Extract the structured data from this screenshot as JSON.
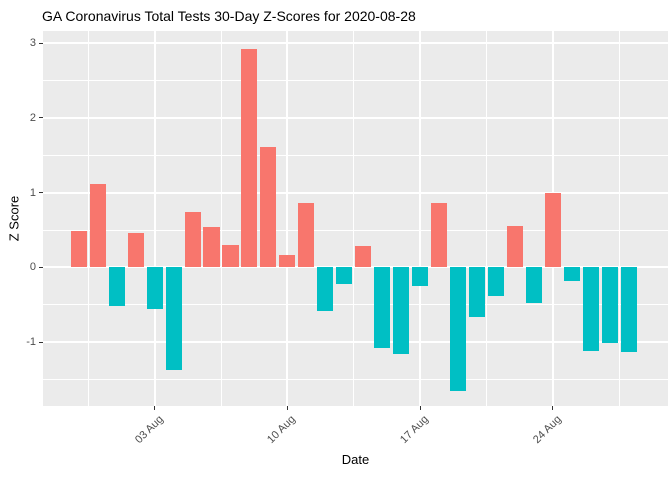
{
  "title": "GA Coronavirus Total Tests 30-Day Z-Scores for 2020-08-28",
  "colors": {
    "positive_bar": "#F8766D",
    "negative_bar": "#00BFC4",
    "panel_background": "#EBEBEB",
    "gridline": "#FFFFFF",
    "tick_label": "#4D4D4D",
    "axis_text": "#000000"
  },
  "chart_data": {
    "type": "bar",
    "title": "GA Coronavirus Total Tests 30-Day Z-Scores for 2020-08-28",
    "xlabel": "Date",
    "ylabel": "Z Score",
    "legend": "none",
    "grid": "white major and minor gridlines on gray panel",
    "color_rule": "positive bars salmon #F8766D, negative bars teal #00BFC4",
    "x": [
      "2020-07-30",
      "2020-07-31",
      "2020-08-01",
      "2020-08-02",
      "2020-08-03",
      "2020-08-04",
      "2020-08-05",
      "2020-08-06",
      "2020-08-07",
      "2020-08-08",
      "2020-08-09",
      "2020-08-10",
      "2020-08-11",
      "2020-08-12",
      "2020-08-13",
      "2020-08-14",
      "2020-08-15",
      "2020-08-16",
      "2020-08-17",
      "2020-08-18",
      "2020-08-19",
      "2020-08-20",
      "2020-08-21",
      "2020-08-22",
      "2020-08-23",
      "2020-08-24",
      "2020-08-25",
      "2020-08-26",
      "2020-08-27",
      "2020-08-28"
    ],
    "values": [
      0.49,
      1.12,
      -0.52,
      0.46,
      -0.56,
      -1.37,
      0.74,
      0.54,
      0.3,
      2.92,
      1.61,
      0.17,
      0.86,
      -0.59,
      -0.23,
      0.29,
      -1.08,
      -1.16,
      -0.25,
      0.86,
      -1.65,
      -0.66,
      -0.38,
      0.55,
      -0.48,
      1.0,
      -0.19,
      -1.12,
      -1.01,
      -1.14
    ],
    "ylim": [
      -1.88,
      3.16
    ],
    "yticks": [
      3,
      2,
      1,
      0,
      -1
    ],
    "ytick_labels": [
      "3",
      "2",
      "1",
      "0",
      "-1"
    ],
    "yminor": [
      2.5,
      1.5,
      0.5,
      -0.5,
      -1.5
    ],
    "xticks": [
      {
        "index": 4,
        "label": "03 Aug"
      },
      {
        "index": 11,
        "label": "10 Aug"
      },
      {
        "index": 18,
        "label": "17 Aug"
      },
      {
        "index": 25,
        "label": "24 Aug"
      }
    ],
    "xminor_indices": [
      0.5,
      7.5,
      14.5,
      21.5,
      28.5
    ]
  }
}
